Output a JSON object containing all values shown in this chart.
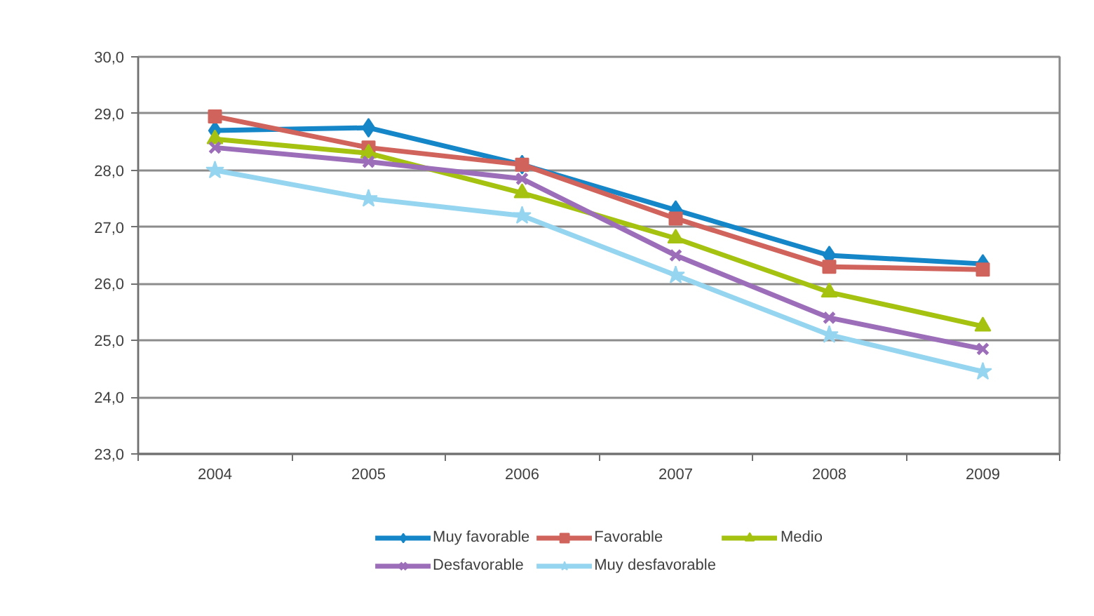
{
  "chart_data": {
    "type": "line",
    "categories": [
      "2004",
      "2005",
      "2006",
      "2007",
      "2008",
      "2009"
    ],
    "series": [
      {
        "name": "Muy favorable",
        "color": "#1586c8",
        "marker": "diamond",
        "values": [
          28.7,
          28.75,
          28.1,
          27.3,
          26.5,
          26.35
        ]
      },
      {
        "name": "Favorable",
        "color": "#d0635c",
        "marker": "square",
        "values": [
          28.95,
          28.4,
          28.1,
          27.15,
          26.3,
          26.25
        ]
      },
      {
        "name": "Medio",
        "color": "#a4c20f",
        "marker": "triangle",
        "values": [
          28.55,
          28.3,
          27.6,
          26.8,
          25.85,
          25.25
        ]
      },
      {
        "name": "Desfavorable",
        "color": "#9c6db8",
        "marker": "cross",
        "values": [
          28.4,
          28.15,
          27.85,
          26.5,
          25.4,
          24.85
        ]
      },
      {
        "name": "Muy desfavorable",
        "color": "#96d5f0",
        "marker": "star",
        "values": [
          28.0,
          27.5,
          27.2,
          26.15,
          25.1,
          24.45
        ]
      }
    ],
    "ylim": [
      23,
      30
    ],
    "yticks": [
      {
        "value": 23,
        "label": "23,0"
      },
      {
        "value": 24,
        "label": "24,0"
      },
      {
        "value": 25,
        "label": "25,0"
      },
      {
        "value": 26,
        "label": "26,0"
      },
      {
        "value": 27,
        "label": "27,0"
      },
      {
        "value": 28,
        "label": "28,0"
      },
      {
        "value": 29,
        "label": "29,0"
      },
      {
        "value": 30,
        "label": "30,0"
      }
    ],
    "grid": "y",
    "legend": "bottom",
    "line_style": "solid"
  }
}
